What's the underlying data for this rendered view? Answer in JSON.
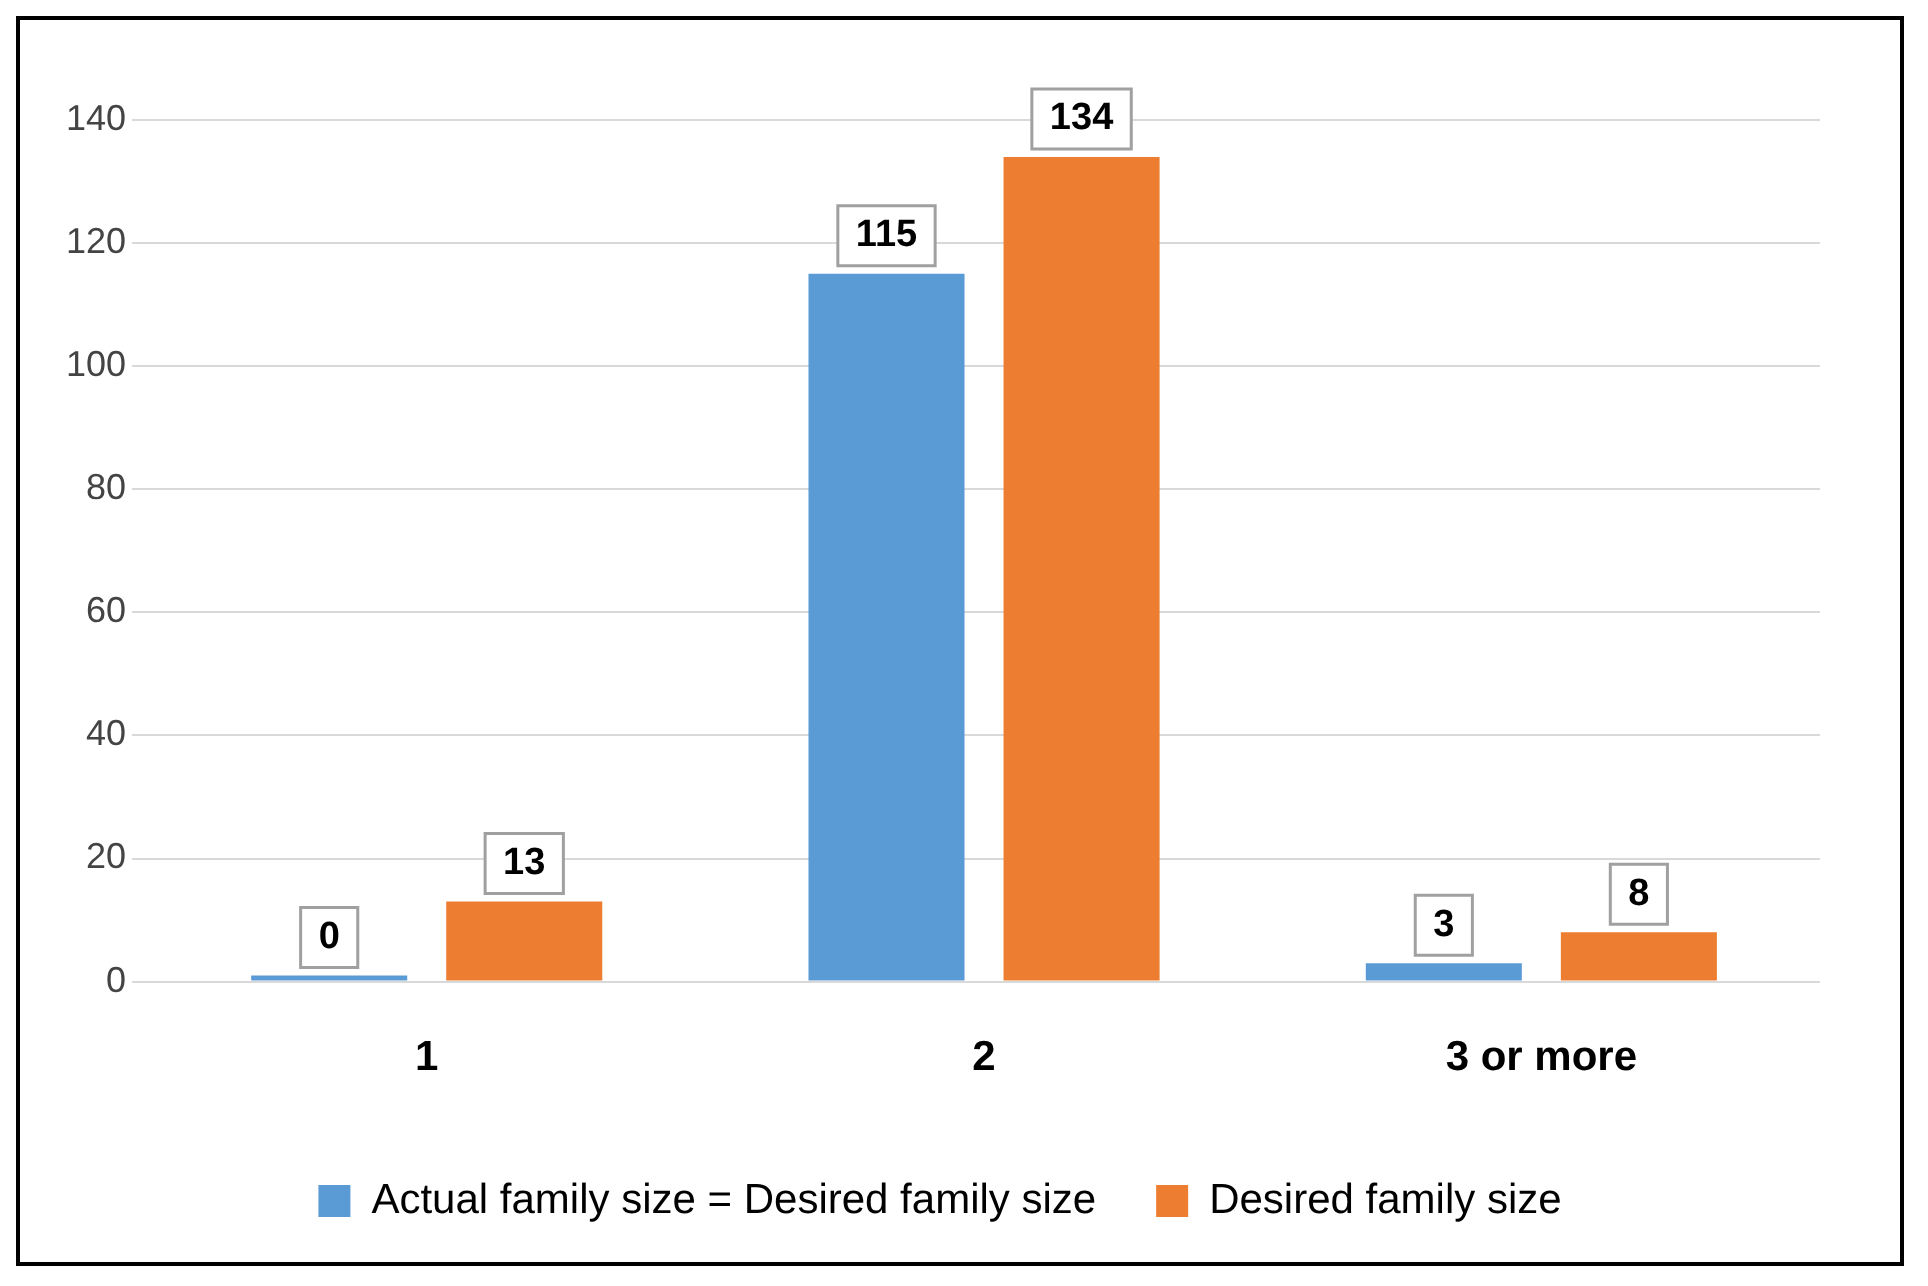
{
  "chart_data": {
    "type": "bar",
    "categories": [
      "1",
      "2",
      "3 or more"
    ],
    "series": [
      {
        "name": "Actual family size = Desired family size",
        "color": "#5b9bd5",
        "values": [
          0,
          115,
          3
        ]
      },
      {
        "name": "Desired family size",
        "color": "#ed7d31",
        "values": [
          13,
          134,
          8
        ]
      }
    ],
    "ylim": [
      0,
      140
    ],
    "yticks": [
      0,
      20,
      40,
      60,
      80,
      100,
      120,
      140
    ],
    "grid": "y",
    "legend": "bottom",
    "data_labels": true
  }
}
